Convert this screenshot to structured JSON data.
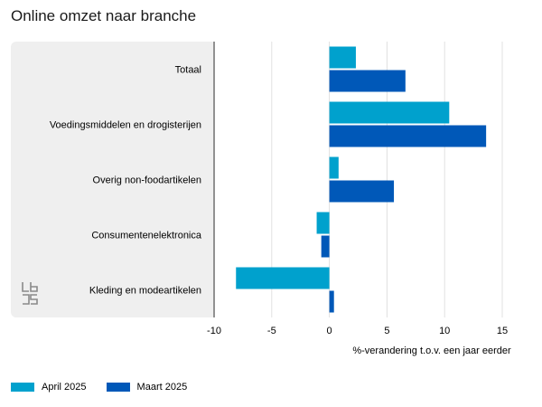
{
  "title": "Online omzet naar branche",
  "colors": {
    "april": "#00a1cd",
    "maart": "#0058b8",
    "panel": "#efefef",
    "grid": "#e0e0e0"
  },
  "icons": {
    "logo": "cbs-logo-icon"
  },
  "chart_data": {
    "type": "bar",
    "orientation": "horizontal",
    "title": "Online omzet naar branche",
    "categories": [
      "Totaal",
      "Voedingsmiddelen en drogisterijen",
      "Overig non-foodartikelen",
      "Consumentenelektronica",
      "Kleding en modeartikelen"
    ],
    "series": [
      {
        "name": "April 2025",
        "values": [
          2.3,
          10.4,
          0.8,
          -1.1,
          -8.1
        ]
      },
      {
        "name": "Maart 2025",
        "values": [
          6.6,
          13.6,
          5.6,
          -0.7,
          0.4
        ]
      }
    ],
    "xlabel": "%-verandering t.o.v. een jaar eerder",
    "xlim": [
      -10,
      15
    ],
    "xticks": [
      -10,
      -5,
      0,
      5,
      10,
      15
    ],
    "grid": true,
    "legend": "bottom-left"
  }
}
